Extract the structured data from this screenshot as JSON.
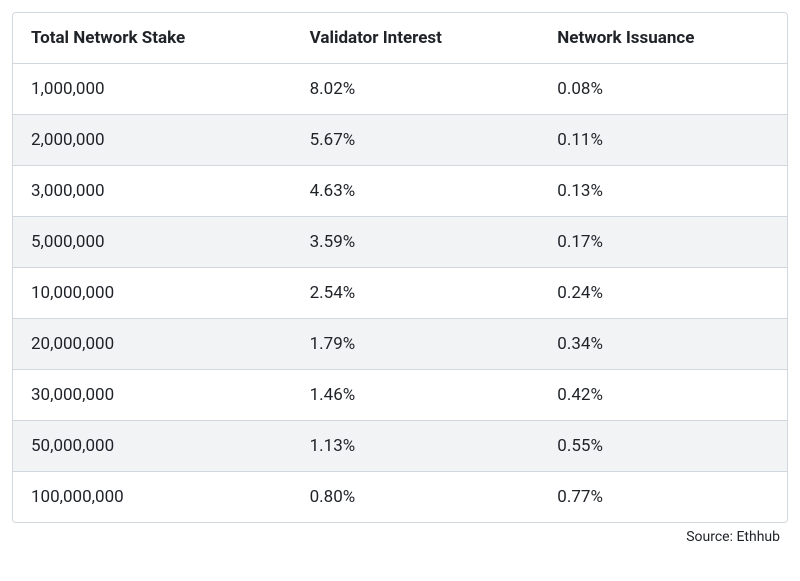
{
  "table": {
    "type": "table",
    "background_color": "#ffffff",
    "alt_row_color": "#f1f3f5",
    "border_color": "#d0d7de",
    "text_color": "#1f2328",
    "header_fontsize": 17,
    "header_fontweight": 700,
    "cell_fontsize": 17,
    "cell_fontweight": 400,
    "column_widths_pct": [
      36,
      32,
      32
    ],
    "columns": [
      "Total Network Stake",
      "Validator Interest",
      "Network Issuance"
    ],
    "rows": [
      [
        "1,000,000",
        "8.02%",
        "0.08%"
      ],
      [
        "2,000,000",
        "5.67%",
        "0.11%"
      ],
      [
        "3,000,000",
        "4.63%",
        "0.13%"
      ],
      [
        "5,000,000",
        "3.59%",
        "0.17%"
      ],
      [
        "10,000,000",
        "2.54%",
        "0.24%"
      ],
      [
        "20,000,000",
        "1.79%",
        "0.34%"
      ],
      [
        "30,000,000",
        "1.46%",
        "0.42%"
      ],
      [
        "50,000,000",
        "1.13%",
        "0.55%"
      ],
      [
        "100,000,000",
        "0.80%",
        "0.77%"
      ]
    ]
  },
  "source": {
    "label": "Source: Ethhub",
    "fontsize": 14,
    "color": "#1f2328"
  }
}
